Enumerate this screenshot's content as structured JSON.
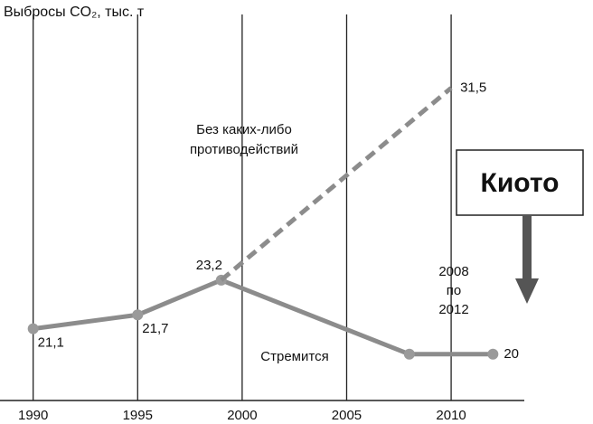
{
  "chart_data": {
    "type": "line",
    "title": "Выбросы CO₂, тыс. т",
    "xlim": [
      1988.5,
      2013.5
    ],
    "ylim": [
      18,
      35.3
    ],
    "xticks": [
      1990,
      1995,
      2000,
      2005,
      2010
    ],
    "grid": true,
    "series": [
      {
        "color": "#8c8c8c",
        "style": "solid",
        "markers": true,
        "x": [
          1990,
          1995,
          1999,
          2008,
          2012
        ],
        "values": [
          21.1,
          21.7,
          23.2,
          20,
          20
        ],
        "value_labels": [
          "21,1",
          "21,7",
          "23,2",
          null,
          "20"
        ]
      },
      {
        "color": "#8c8c8c",
        "style": "dashed",
        "markers": false,
        "x": [
          1999,
          2010
        ],
        "values": [
          23.2,
          31.5
        ],
        "value_labels": [
          null,
          "31,5"
        ]
      }
    ],
    "annotations": [
      {
        "lines": [
          "Без каких-либо",
          "противодействий"
        ]
      },
      {
        "lines": [
          "Стремится"
        ]
      },
      {
        "lines": [
          "2008",
          "по",
          "2012"
        ]
      },
      {
        "lines": [
          "Киото"
        ]
      }
    ]
  }
}
